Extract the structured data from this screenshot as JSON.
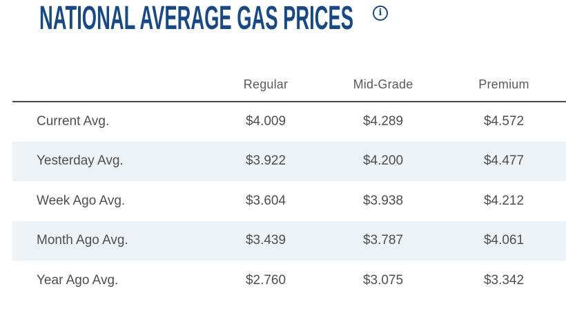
{
  "title": "NATIONAL AVERAGE GAS PRICES",
  "info_icon": {
    "glyph": "i",
    "name": "info-tooltip"
  },
  "colors": {
    "brand_blue": "#164987",
    "stripe": "#edf2f6",
    "body_text": "#4e4e50",
    "header_text": "#5a5a5c",
    "rule": "#4b4b4d"
  },
  "table": {
    "columns": [
      "Regular",
      "Mid-Grade",
      "Premium"
    ],
    "rows": [
      {
        "label": "Current Avg.",
        "values": [
          "$4.009",
          "$4.289",
          "$4.572"
        ]
      },
      {
        "label": "Yesterday Avg.",
        "values": [
          "$3.922",
          "$4.200",
          "$4.477"
        ]
      },
      {
        "label": "Week Ago Avg.",
        "values": [
          "$3.604",
          "$3.938",
          "$4.212"
        ]
      },
      {
        "label": "Month Ago Avg.",
        "values": [
          "$3.439",
          "$3.787",
          "$4.061"
        ]
      },
      {
        "label": "Year Ago Avg.",
        "values": [
          "$2.760",
          "$3.075",
          "$3.342"
        ]
      }
    ]
  }
}
